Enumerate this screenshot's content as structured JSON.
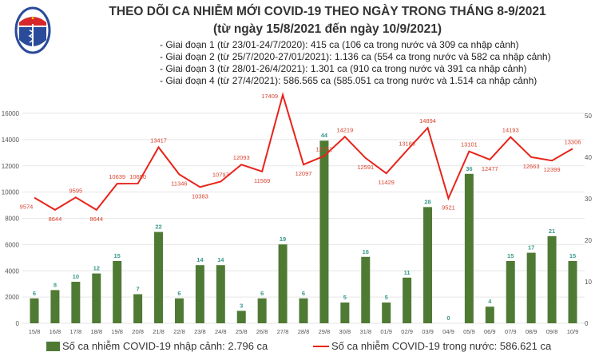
{
  "header": {
    "title": "THEO DÕI CA NHIỄM MỚI COVID-19 THEO NGÀY TRONG THÁNG 8-9/2021",
    "subtitle": "(từ ngày 15/8/2021 đến ngày 10/9/2021)",
    "notes": [
      "- Giai đoạn 1 (từ 23/01-24/7/2020): 415 ca (106 ca trong nước và 309 ca nhập cảnh)",
      "- Giai đoạn 2 (từ 25/7/2020-27/01/2021): 1.136 ca (554 ca trong nước và 582 ca nhập cảnh)",
      "- Giai đoạn 3 (từ 28/01-26/4/2021): 1.301 ca (910 ca trong nước và 391 ca nhập cảnh)",
      "- Giai đoạn 4 (từ 27/4/2021): 586.565 ca (585.051 ca trong nước và 1.514 ca nhập cảnh)"
    ],
    "logo_text": "BỘ Y TẾ MINISTRY OF HEALTH"
  },
  "chart_data": {
    "type": "bar+line",
    "categories": [
      "15/8",
      "16/8",
      "17/8",
      "18/8",
      "19/8",
      "20/8",
      "21/8",
      "22/8",
      "23/8",
      "24/8",
      "25/8",
      "26/8",
      "27/8",
      "28/8",
      "29/8",
      "30/8",
      "31/8",
      "01/9",
      "02/9",
      "03/9",
      "04/9",
      "05/9",
      "06/9",
      "07/9",
      "08/9",
      "09/8",
      "10/9"
    ],
    "series": [
      {
        "name": "Số ca nhiễm COVID-19 nhập cảnh: 2.796 ca",
        "type": "bar",
        "axis": "right",
        "color": "#4f7a34",
        "values": [
          6,
          8,
          10,
          12,
          15,
          7,
          22,
          6,
          14,
          14,
          3,
          6,
          19,
          6,
          44,
          5,
          16,
          5,
          11,
          28,
          0,
          36,
          4,
          15,
          17,
          21,
          15
        ]
      },
      {
        "name": "Số ca nhiễm COVID-19 trong nước: 586.621 ca",
        "type": "line",
        "axis": "left",
        "color": "#e8231a",
        "values": [
          9574,
          8644,
          9595,
          8644,
          10639,
          10650,
          13417,
          11346,
          10383,
          10797,
          12093,
          11569,
          17409,
          12097,
          12752,
          14219,
          12591,
          11429,
          13186,
          14894,
          9521,
          13101,
          12477,
          14193,
          12663,
          12399,
          13306
        ]
      }
    ],
    "left_axis": {
      "ticks": [
        0,
        2000,
        4000,
        6000,
        8000,
        10000,
        12000,
        14000,
        16000
      ],
      "range": [
        0,
        16000
      ]
    },
    "right_axis": {
      "ticks": [
        0,
        10,
        20,
        30,
        40,
        50
      ],
      "range": [
        0,
        50
      ]
    },
    "grid": true,
    "legend_position": "bottom"
  }
}
